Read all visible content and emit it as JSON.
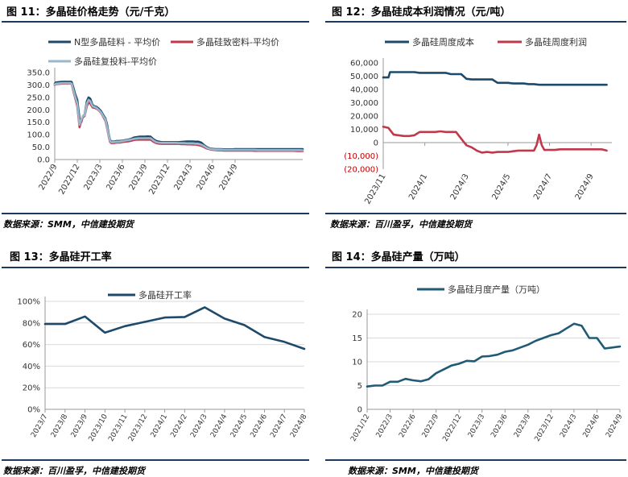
{
  "panels": [
    {
      "title": "图 11：多晶硅价格走势（元/千克）",
      "source": "数据来源：SMM，中信建投期货"
    },
    {
      "title": "图 12：多晶硅成本利润情况（元/吨）",
      "source": "数据来源：百川盈孚，中信建投期货"
    },
    {
      "title": "图 13：多晶硅开工率",
      "source": "数据来源：百川盈孚，中信建投期货"
    },
    {
      "title": "图 14：多晶硅产量（万吨）",
      "source": "数据来源：SMM，中信建投期货"
    }
  ],
  "colors": {
    "navy": "#1d4a6b",
    "red": "#c0394b",
    "lightblue": "#9bb7cc",
    "teal": "#215a76",
    "axis": "#999999",
    "rule": "#1b3a5c"
  },
  "chart_data": [
    {
      "type": "line",
      "ylim": [
        0,
        350
      ],
      "yticks": [
        "0.0",
        "50.0",
        "100.0",
        "150.0",
        "200.0",
        "250.0",
        "300.0",
        "350.0"
      ],
      "xticks": [
        "2022/9",
        "2022/12",
        "2023/3",
        "2023/6",
        "2023/9",
        "2023/12",
        "2024/3",
        "2024/6",
        "2024/9"
      ],
      "series": [
        {
          "name": "N型多晶硅料 - 平均价",
          "color": "#1d4a6b",
          "x": [
            0,
            0.2,
            1,
            1.7,
            1.9,
            2.1,
            2.3,
            2.5,
            2.7,
            3,
            3.3,
            3.6,
            4,
            4.4,
            4.7,
            5,
            5.3,
            5.7,
            6,
            6.3,
            6.7,
            7,
            7.4,
            7.8,
            8.2,
            8.6,
            9,
            9.3,
            9.6,
            9.8,
            10,
            10.5,
            11,
            11.5,
            12,
            12.5,
            13,
            13.5,
            14,
            14.5,
            15,
            15.5,
            16,
            16.5,
            17,
            17.5,
            18,
            18.5,
            19,
            19.5,
            20,
            20.5,
            21,
            21.5,
            22,
            22.5,
            23,
            23.5,
            24,
            24.5,
            25,
            25.5,
            26,
            26.5,
            27,
            27.5,
            28,
            28.5,
            29,
            29.5,
            30,
            30.5,
            31,
            31.5,
            32,
            32.5,
            33,
            33.5,
            34,
            34.5,
            35,
            35.5,
            36,
            36.5,
            37,
            37.5,
            38,
            38.5,
            39,
            39.5,
            40,
            40.5,
            41,
            41.5,
            42,
            42.5,
            43,
            43.5,
            44
          ],
          "y": [
            305,
            310,
            312,
            313,
            313,
            313,
            312,
            313,
            313,
            312,
            290,
            265,
            240,
            165,
            150,
            175,
            180,
            235,
            250,
            245,
            220,
            215,
            212,
            205,
            195,
            180,
            165,
            140,
            100,
            80,
            73,
            72,
            75,
            75,
            76,
            78,
            80,
            83,
            88,
            90,
            92,
            92,
            92,
            93,
            92,
            82,
            75,
            72,
            70,
            70,
            70,
            70,
            70,
            70,
            70,
            71,
            72,
            73,
            73,
            73,
            72,
            72,
            68,
            58,
            50,
            45,
            43,
            42,
            42,
            42,
            41,
            41,
            41,
            41,
            42,
            42,
            42,
            42,
            42,
            42,
            42,
            42,
            42,
            42,
            42,
            42,
            42,
            42,
            42,
            42,
            42,
            42,
            42,
            42,
            42,
            42,
            42,
            42,
            42
          ]
        },
        {
          "name": "多晶硅致密料-平均价",
          "color": "#c0394b",
          "x": [
            0,
            0.2,
            1,
            1.7,
            1.9,
            2.1,
            2.3,
            2.5,
            2.7,
            3,
            3.3,
            3.6,
            4,
            4.4,
            4.7,
            5,
            5.3,
            5.7,
            6,
            6.3,
            6.7,
            7,
            7.4,
            7.8,
            8.2,
            8.6,
            9,
            9.3,
            9.6,
            9.8,
            10,
            10.5,
            11,
            11.5,
            12,
            12.5,
            13,
            13.5,
            14,
            14.5,
            15,
            15.5,
            16,
            16.5,
            17,
            17.5,
            18,
            18.5,
            19,
            19.5,
            20,
            20.5,
            21,
            21.5,
            22,
            22.5,
            23,
            23.5,
            24,
            24.5,
            25,
            25.5,
            26,
            26.5,
            27,
            27.5,
            28,
            28.5,
            29,
            29.5,
            30,
            30.5,
            31,
            31.5,
            32,
            32.5,
            33,
            33.5,
            34,
            34.5,
            35,
            35.5,
            36,
            36.5,
            37,
            37.5,
            38,
            38.5,
            39,
            39.5,
            40,
            40.5,
            41,
            41.5,
            42,
            42.5,
            43,
            43.5,
            44
          ],
          "y": [
            300,
            303,
            305,
            306,
            306,
            306,
            305,
            306,
            306,
            303,
            275,
            250,
            215,
            130,
            155,
            170,
            175,
            215,
            230,
            225,
            210,
            208,
            205,
            198,
            188,
            172,
            155,
            125,
            90,
            72,
            66,
            66,
            68,
            68,
            70,
            72,
            73,
            75,
            78,
            80,
            80,
            80,
            80,
            80,
            80,
            72,
            66,
            64,
            63,
            63,
            63,
            63,
            63,
            63,
            63,
            62,
            62,
            61,
            61,
            60,
            60,
            58,
            55,
            50,
            44,
            41,
            39,
            38,
            37,
            37,
            36,
            36,
            36,
            36,
            36,
            36,
            36,
            36,
            36,
            36,
            36,
            35,
            35,
            35,
            35,
            35,
            35,
            35,
            35,
            35,
            35,
            35,
            35,
            35,
            35,
            35,
            34,
            34,
            34
          ]
        },
        {
          "name": "多晶硅复投料-平均价",
          "color": "#9bb7cc",
          "x": [
            0,
            0.2,
            1,
            1.7,
            1.9,
            2.1,
            2.3,
            2.5,
            2.7,
            3,
            3.3,
            3.6,
            4,
            4.4,
            4.7,
            5,
            5.3,
            5.7,
            6,
            6.3,
            6.7,
            7,
            7.4,
            7.8,
            8.2,
            8.6,
            9,
            9.3,
            9.6,
            9.8,
            10,
            10.5,
            11,
            11.5,
            12,
            12.5,
            13,
            13.5,
            14,
            14.5,
            15,
            15.5,
            16,
            16.5,
            17,
            17.5,
            18,
            18.5,
            19,
            19.5,
            20,
            20.5,
            21,
            21.5,
            22,
            22.5,
            23,
            23.5,
            24,
            24.5,
            25,
            25.5,
            26,
            26.5,
            27,
            27.5,
            28,
            28.5,
            29,
            29.5,
            30,
            30.5,
            31,
            31.5,
            32,
            32.5,
            33,
            33.5,
            34,
            34.5,
            35,
            35.5,
            36,
            36.5,
            37,
            37.5,
            38,
            38.5,
            39,
            39.5,
            40,
            40.5,
            41,
            41.5,
            42,
            42.5,
            43,
            43.5,
            44
          ],
          "y": [
            302,
            305,
            307,
            308,
            308,
            308,
            307,
            308,
            308,
            305,
            280,
            255,
            225,
            140,
            160,
            175,
            178,
            225,
            240,
            235,
            215,
            212,
            208,
            200,
            190,
            175,
            160,
            130,
            95,
            76,
            70,
            70,
            72,
            72,
            74,
            76,
            78,
            80,
            83,
            85,
            86,
            86,
            86,
            86,
            86,
            77,
            70,
            68,
            67,
            67,
            67,
            67,
            67,
            67,
            66,
            66,
            66,
            65,
            65,
            65,
            64,
            63,
            60,
            54,
            47,
            43,
            41,
            40,
            40,
            40,
            39,
            39,
            39,
            39,
            39,
            39,
            39,
            39,
            39,
            39,
            39,
            39,
            38,
            38,
            38,
            38,
            38,
            38,
            38,
            38,
            38,
            38,
            38,
            38,
            38,
            38,
            38,
            38,
            37
          ]
        }
      ]
    },
    {
      "type": "line",
      "ylim": [
        -20000,
        60000
      ],
      "yticks": [
        "(20,000)",
        "(10,000)",
        "0",
        "10,000",
        "20,000",
        "30,000",
        "40,000",
        "50,000",
        "60,000"
      ],
      "xticks": [
        "2023/11",
        "2024/1",
        "2024/3",
        "2024/5",
        "2024/7",
        "2024/9"
      ],
      "series": [
        {
          "name": "多晶硅周度成本",
          "color": "#1d4a6b",
          "x": [
            0,
            1,
            1.3,
            2,
            3,
            4,
            5,
            6,
            7,
            8,
            9,
            10,
            11,
            12,
            13,
            14,
            15,
            16,
            17,
            18,
            19,
            20,
            21,
            22,
            23,
            24,
            25,
            26,
            27,
            28,
            29,
            30,
            31,
            32,
            33,
            34,
            35,
            36,
            37,
            38,
            39,
            40,
            41,
            42,
            43
          ],
          "y": [
            49000,
            49000,
            53000,
            53000,
            53000,
            53000,
            53000,
            53000,
            52500,
            52500,
            52500,
            52500,
            52500,
            52500,
            51500,
            51500,
            51500,
            48000,
            47500,
            47500,
            47500,
            47500,
            47500,
            45000,
            45000,
            45000,
            44500,
            44500,
            44500,
            44000,
            44000,
            43500,
            43500,
            43500,
            43500,
            43500,
            43500,
            43500,
            43500,
            43500,
            43500,
            43500,
            43500,
            43500,
            43500
          ]
        },
        {
          "name": "多晶硅周度利润",
          "color": "#c0394b",
          "x": [
            0,
            1,
            2,
            3,
            4,
            5,
            6,
            7,
            8,
            9,
            10,
            11,
            12,
            13,
            14,
            15,
            16,
            17,
            18,
            19,
            20,
            21,
            22,
            23,
            24,
            25,
            26,
            27,
            28,
            29,
            29.5,
            30,
            30.5,
            31,
            32,
            33,
            34,
            35,
            36,
            37,
            38,
            39,
            40,
            41,
            42,
            43
          ],
          "y": [
            12000,
            11000,
            6000,
            5500,
            5000,
            5000,
            5500,
            8000,
            8000,
            8000,
            8000,
            8500,
            8000,
            8000,
            8000,
            3000,
            -2000,
            -3500,
            -6000,
            -7500,
            -7000,
            -7500,
            -7000,
            -7000,
            -7000,
            -6500,
            -6000,
            -6000,
            -6000,
            -6000,
            -2000,
            6000,
            -2000,
            -5500,
            -5500,
            -5500,
            -5000,
            -5000,
            -5000,
            -5000,
            -5000,
            -5000,
            -5000,
            -5000,
            -5000,
            -6000
          ]
        }
      ]
    },
    {
      "type": "line",
      "ylim": [
        0,
        100
      ],
      "yticks": [
        "0%",
        "20%",
        "40%",
        "60%",
        "80%",
        "100%"
      ],
      "xticks": [
        "2023/7",
        "2023/8",
        "2023/9",
        "2023/10",
        "2023/11",
        "2023/12",
        "2024/1",
        "2024/2",
        "2024/3",
        "2024/4",
        "2024/5",
        "2024/6",
        "2024/7",
        "2024/8"
      ],
      "series": [
        {
          "name": "多晶硅开工率",
          "color": "#1d4a6b",
          "x": [
            "2023/7",
            "2023/8",
            "2023/9",
            "2023/10",
            "2023/11",
            "2023/12",
            "2024/1",
            "2024/2",
            "2024/3",
            "2024/4",
            "2024/5",
            "2024/6",
            "2024/7",
            "2024/8"
          ],
          "y": [
            79,
            79,
            86,
            71,
            77,
            81,
            85,
            85.5,
            94.5,
            84,
            78,
            67,
            62.5,
            56
          ]
        }
      ]
    },
    {
      "type": "line",
      "ylim": [
        0,
        20
      ],
      "yticks": [
        "0",
        "5",
        "10",
        "15",
        "20"
      ],
      "xticks": [
        "2021/12",
        "2022/3",
        "2022/6",
        "2022/9",
        "2022/12",
        "2023/3",
        "2023/6",
        "2023/9",
        "2023/12",
        "2024/3",
        "2024/6",
        "2024/9"
      ],
      "series": [
        {
          "name": "多晶硅月度产量（万吨）",
          "color": "#215a76",
          "x": [
            "2021/12",
            "2022/1",
            "2022/2",
            "2022/3",
            "2022/4",
            "2022/5",
            "2022/6",
            "2022/7",
            "2022/8",
            "2022/9",
            "2022/10",
            "2022/11",
            "2022/12",
            "2023/1",
            "2023/2",
            "2023/3",
            "2023/4",
            "2023/5",
            "2023/6",
            "2023/7",
            "2023/8",
            "2023/9",
            "2023/10",
            "2023/11",
            "2023/12",
            "2024/1",
            "2024/2",
            "2024/3",
            "2024/4",
            "2024/5",
            "2024/6",
            "2024/7",
            "2024/8",
            "2024/9"
          ],
          "y": [
            4.8,
            5.0,
            5.0,
            5.8,
            5.8,
            6.4,
            6.1,
            5.9,
            6.3,
            7.6,
            8.4,
            9.2,
            9.6,
            10.2,
            10.1,
            11.1,
            11.2,
            11.5,
            12.1,
            12.4,
            13.0,
            13.6,
            14.4,
            15.0,
            15.6,
            16.0,
            17.0,
            18.0,
            17.6,
            15.0,
            15.0,
            12.8,
            13.0,
            13.2
          ]
        }
      ]
    }
  ]
}
